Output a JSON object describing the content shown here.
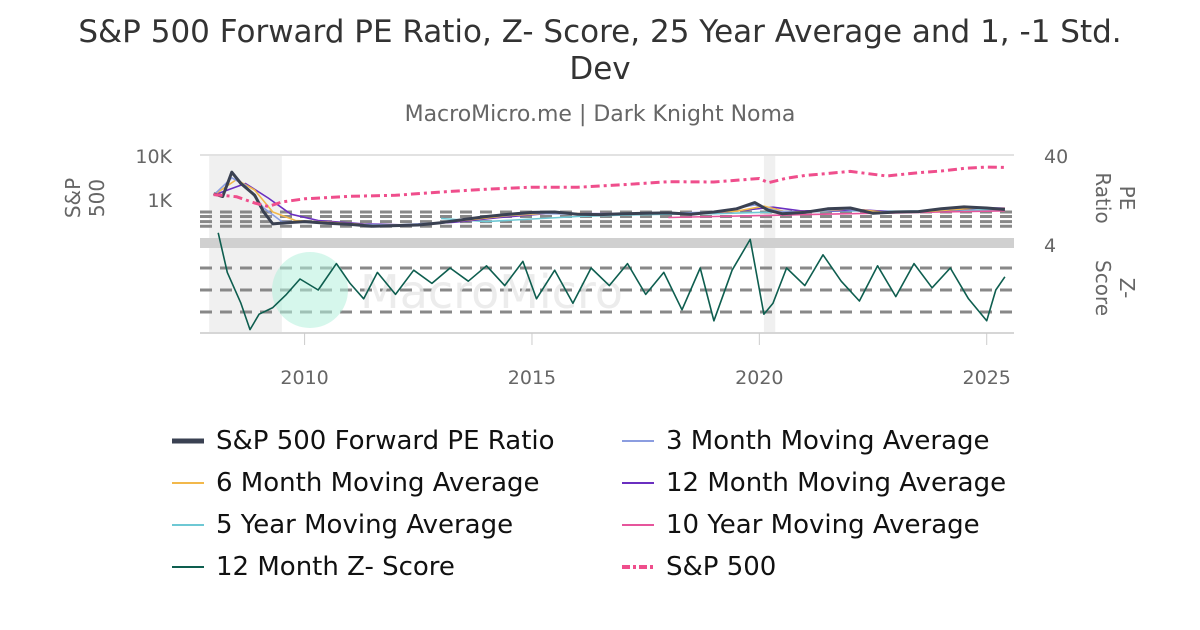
{
  "chart_data": {
    "type": "line",
    "title": "S&P 500 Forward PE Ratio, Z- Score, 25 Year Average and 1, -1 Std. Dev",
    "subtitle": "MacroMicro.me | Dark Knight Noma",
    "watermark": "MacroMicro",
    "x_ticks": [
      "2010",
      "2015",
      "2020",
      "2025"
    ],
    "x_range": [
      2007.7,
      2025.6
    ],
    "recession_shading": [
      [
        2007.9,
        2009.5
      ],
      [
        2020.1,
        2020.35
      ]
    ],
    "panels": {
      "top": {
        "left_axis": {
          "label": "S&P 500",
          "ticks": [
            "10K",
            "1K"
          ],
          "scale": "log"
        },
        "right_axis": {
          "label": "PE Ratio",
          "ticks": [
            "40",
            "4"
          ],
          "scale": "log"
        }
      },
      "bottom": {
        "right_axis": {
          "label": "Z- Score"
        }
      }
    },
    "series": [
      {
        "name": "S&P 500 Forward PE Ratio",
        "color": "#3a4152",
        "style": "solid-thick",
        "points": [
          [
            2008.0,
            14.5
          ],
          [
            2008.2,
            13.5
          ],
          [
            2008.4,
            25.5
          ],
          [
            2008.6,
            19
          ],
          [
            2008.9,
            14
          ],
          [
            2009.1,
            9
          ],
          [
            2009.3,
            6.6
          ],
          [
            2009.6,
            6.8
          ],
          [
            2010.0,
            7.0
          ],
          [
            2010.5,
            6.7
          ],
          [
            2011.0,
            6.5
          ],
          [
            2011.5,
            6.2
          ],
          [
            2012.0,
            6.3
          ],
          [
            2012.5,
            6.4
          ],
          [
            2013.0,
            6.8
          ],
          [
            2013.5,
            7.4
          ],
          [
            2014.0,
            8.0
          ],
          [
            2014.5,
            8.5
          ],
          [
            2015.0,
            8.9
          ],
          [
            2015.5,
            9.0
          ],
          [
            2016.0,
            8.5
          ],
          [
            2016.5,
            8.4
          ],
          [
            2017.0,
            8.6
          ],
          [
            2017.5,
            8.7
          ],
          [
            2018.0,
            8.8
          ],
          [
            2018.5,
            8.5
          ],
          [
            2019.0,
            9.0
          ],
          [
            2019.5,
            9.8
          ],
          [
            2019.9,
            11.5
          ],
          [
            2020.2,
            9.4
          ],
          [
            2020.5,
            8.6
          ],
          [
            2021.0,
            8.9
          ],
          [
            2021.5,
            9.8
          ],
          [
            2022.0,
            10.0
          ],
          [
            2022.5,
            8.7
          ],
          [
            2023.0,
            9.0
          ],
          [
            2023.5,
            9.1
          ],
          [
            2024.0,
            9.8
          ],
          [
            2024.5,
            10.3
          ],
          [
            2025.0,
            10.0
          ],
          [
            2025.4,
            9.6
          ]
        ]
      },
      {
        "name": "3 Month Moving Average",
        "color": "#8b9de0",
        "style": "solid",
        "points": [
          [
            2008.0,
            14
          ],
          [
            2008.4,
            22
          ],
          [
            2008.7,
            18
          ],
          [
            2009.1,
            10
          ],
          [
            2009.5,
            7.0
          ],
          [
            2010.0,
            6.9
          ],
          [
            2011.0,
            6.5
          ],
          [
            2012.0,
            6.4
          ],
          [
            2013.0,
            6.8
          ],
          [
            2014.0,
            7.9
          ],
          [
            2015.0,
            8.7
          ],
          [
            2016.0,
            8.5
          ],
          [
            2017.0,
            8.6
          ],
          [
            2018.0,
            8.7
          ],
          [
            2019.0,
            9.0
          ],
          [
            2019.9,
            10.8
          ],
          [
            2020.4,
            9.2
          ],
          [
            2021.0,
            8.9
          ],
          [
            2021.8,
            9.8
          ],
          [
            2022.5,
            8.9
          ],
          [
            2023.5,
            9.1
          ],
          [
            2024.5,
            10.1
          ],
          [
            2025.4,
            9.8
          ]
        ]
      },
      {
        "name": "6 Month Moving Average",
        "color": "#f2b84b",
        "style": "solid",
        "points": [
          [
            2008.0,
            14
          ],
          [
            2008.5,
            21
          ],
          [
            2008.9,
            16
          ],
          [
            2009.3,
            9
          ],
          [
            2009.8,
            7.2
          ],
          [
            2010.5,
            6.9
          ],
          [
            2011.5,
            6.4
          ],
          [
            2012.5,
            6.4
          ],
          [
            2013.5,
            7.2
          ],
          [
            2014.5,
            8.2
          ],
          [
            2015.5,
            8.8
          ],
          [
            2016.5,
            8.5
          ],
          [
            2017.5,
            8.6
          ],
          [
            2018.5,
            8.7
          ],
          [
            2019.5,
            9.2
          ],
          [
            2020.1,
            10.5
          ],
          [
            2020.6,
            9.0
          ],
          [
            2021.3,
            9.2
          ],
          [
            2022.0,
            9.8
          ],
          [
            2022.8,
            8.9
          ],
          [
            2023.8,
            9.2
          ],
          [
            2024.8,
            10.0
          ],
          [
            2025.4,
            9.9
          ]
        ]
      },
      {
        "name": "12 Month Moving Average",
        "color": "#6a2fc0",
        "style": "solid",
        "points": [
          [
            2008.0,
            14
          ],
          [
            2008.7,
            19
          ],
          [
            2009.2,
            13
          ],
          [
            2009.7,
            8.5
          ],
          [
            2010.3,
            7.2
          ],
          [
            2011.3,
            6.6
          ],
          [
            2012.3,
            6.4
          ],
          [
            2013.3,
            6.9
          ],
          [
            2014.3,
            7.8
          ],
          [
            2015.3,
            8.6
          ],
          [
            2016.3,
            8.6
          ],
          [
            2017.3,
            8.6
          ],
          [
            2018.3,
            8.7
          ],
          [
            2019.3,
            9.0
          ],
          [
            2020.3,
            10.2
          ],
          [
            2020.9,
            9.3
          ],
          [
            2021.6,
            9.3
          ],
          [
            2022.3,
            9.5
          ],
          [
            2023.0,
            9.0
          ],
          [
            2024.0,
            9.3
          ],
          [
            2024.9,
            10.0
          ],
          [
            2025.4,
            10.0
          ]
        ]
      },
      {
        "name": "5 Year Moving Average",
        "color": "#6ec8d4",
        "style": "solid",
        "points": [
          [
            2013.0,
            7.6
          ],
          [
            2014.0,
            7.0
          ],
          [
            2015.0,
            7.5
          ],
          [
            2016.0,
            8.0
          ],
          [
            2017.0,
            8.3
          ],
          [
            2018.0,
            8.5
          ],
          [
            2019.0,
            8.6
          ],
          [
            2020.0,
            8.9
          ],
          [
            2021.0,
            9.0
          ],
          [
            2022.0,
            9.3
          ],
          [
            2023.0,
            9.2
          ],
          [
            2024.0,
            9.3
          ],
          [
            2025.0,
            9.5
          ],
          [
            2025.4,
            9.6
          ]
        ]
      },
      {
        "name": "10 Year Moving Average",
        "color": "#e6559c",
        "style": "solid",
        "points": [
          [
            2018.0,
            7.8
          ],
          [
            2019.0,
            8.0
          ],
          [
            2020.0,
            8.2
          ],
          [
            2021.0,
            8.4
          ],
          [
            2022.0,
            8.6
          ],
          [
            2023.0,
            8.8
          ],
          [
            2024.0,
            9.0
          ],
          [
            2025.0,
            9.2
          ],
          [
            2025.4,
            9.3
          ]
        ]
      },
      {
        "name": "S&P 500",
        "color": "#ef4e8c",
        "style": "dash-dot",
        "points": [
          [
            2008.0,
            1400
          ],
          [
            2008.5,
            1250
          ],
          [
            2008.9,
            900
          ],
          [
            2009.2,
            750
          ],
          [
            2009.5,
            950
          ],
          [
            2010.0,
            1120
          ],
          [
            2011.0,
            1280
          ],
          [
            2012.0,
            1350
          ],
          [
            2013.0,
            1600
          ],
          [
            2014.0,
            1850
          ],
          [
            2015.0,
            2060
          ],
          [
            2016.0,
            2050
          ],
          [
            2017.0,
            2350
          ],
          [
            2018.0,
            2750
          ],
          [
            2019.0,
            2700
          ],
          [
            2020.0,
            3250
          ],
          [
            2020.2,
            2600
          ],
          [
            2020.6,
            3300
          ],
          [
            2021.0,
            3800
          ],
          [
            2022.0,
            4700
          ],
          [
            2022.8,
            3700
          ],
          [
            2023.5,
            4400
          ],
          [
            2024.0,
            4800
          ],
          [
            2024.5,
            5500
          ],
          [
            2025.0,
            5900
          ],
          [
            2025.4,
            5800
          ]
        ]
      },
      {
        "name": "12 Month Z- Score",
        "color": "#0e5e4f",
        "style": "solid",
        "points": [
          [
            2008.1,
            2.6
          ],
          [
            2008.3,
            0.8
          ],
          [
            2008.6,
            -0.6
          ],
          [
            2008.8,
            -1.8
          ],
          [
            2009.0,
            -1.1
          ],
          [
            2009.3,
            -0.8
          ],
          [
            2009.6,
            -0.2
          ],
          [
            2009.9,
            0.5
          ],
          [
            2010.3,
            0.0
          ],
          [
            2010.7,
            1.2
          ],
          [
            2011.0,
            0.3
          ],
          [
            2011.3,
            -0.4
          ],
          [
            2011.6,
            0.8
          ],
          [
            2012.0,
            -0.2
          ],
          [
            2012.4,
            0.9
          ],
          [
            2012.8,
            0.3
          ],
          [
            2013.2,
            1.0
          ],
          [
            2013.6,
            0.4
          ],
          [
            2014.0,
            1.1
          ],
          [
            2014.4,
            0.2
          ],
          [
            2014.8,
            1.3
          ],
          [
            2015.1,
            -0.4
          ],
          [
            2015.5,
            0.9
          ],
          [
            2015.9,
            -0.6
          ],
          [
            2016.3,
            1.0
          ],
          [
            2016.7,
            0.2
          ],
          [
            2017.1,
            1.2
          ],
          [
            2017.5,
            -0.2
          ],
          [
            2017.9,
            0.8
          ],
          [
            2018.3,
            -0.9
          ],
          [
            2018.7,
            1.0
          ],
          [
            2019.0,
            -1.4
          ],
          [
            2019.4,
            0.9
          ],
          [
            2019.8,
            2.3
          ],
          [
            2020.1,
            -1.1
          ],
          [
            2020.3,
            -0.6
          ],
          [
            2020.6,
            1.0
          ],
          [
            2021.0,
            0.2
          ],
          [
            2021.4,
            1.6
          ],
          [
            2021.8,
            0.4
          ],
          [
            2022.2,
            -0.5
          ],
          [
            2022.6,
            1.1
          ],
          [
            2023.0,
            -0.3
          ],
          [
            2023.4,
            1.2
          ],
          [
            2023.8,
            0.1
          ],
          [
            2024.2,
            1.0
          ],
          [
            2024.6,
            -0.4
          ],
          [
            2025.0,
            -1.4
          ],
          [
            2025.2,
            0.0
          ],
          [
            2025.4,
            0.6
          ]
        ]
      }
    ],
    "reference_lines_top_pe": [
      9,
      8,
      7,
      6.2
    ],
    "reference_lines_bottom_z": [
      1,
      0,
      -1
    ]
  },
  "legend": [
    {
      "label": "S&P 500 Forward PE Ratio",
      "color": "#3a4152",
      "style": "thick"
    },
    {
      "label": "3 Month Moving Average",
      "color": "#8b9de0",
      "style": "solid"
    },
    {
      "label": "6 Month Moving Average",
      "color": "#f2b84b",
      "style": "solid"
    },
    {
      "label": "12 Month Moving Average",
      "color": "#6a2fc0",
      "style": "solid"
    },
    {
      "label": "5 Year Moving Average",
      "color": "#6ec8d4",
      "style": "solid"
    },
    {
      "label": "10 Year Moving Average",
      "color": "#e6559c",
      "style": "solid"
    },
    {
      "label": "12 Month Z- Score",
      "color": "#0e5e4f",
      "style": "solid"
    },
    {
      "label": "S&P 500",
      "color": "#ef4e8c",
      "style": "dashdot"
    }
  ]
}
